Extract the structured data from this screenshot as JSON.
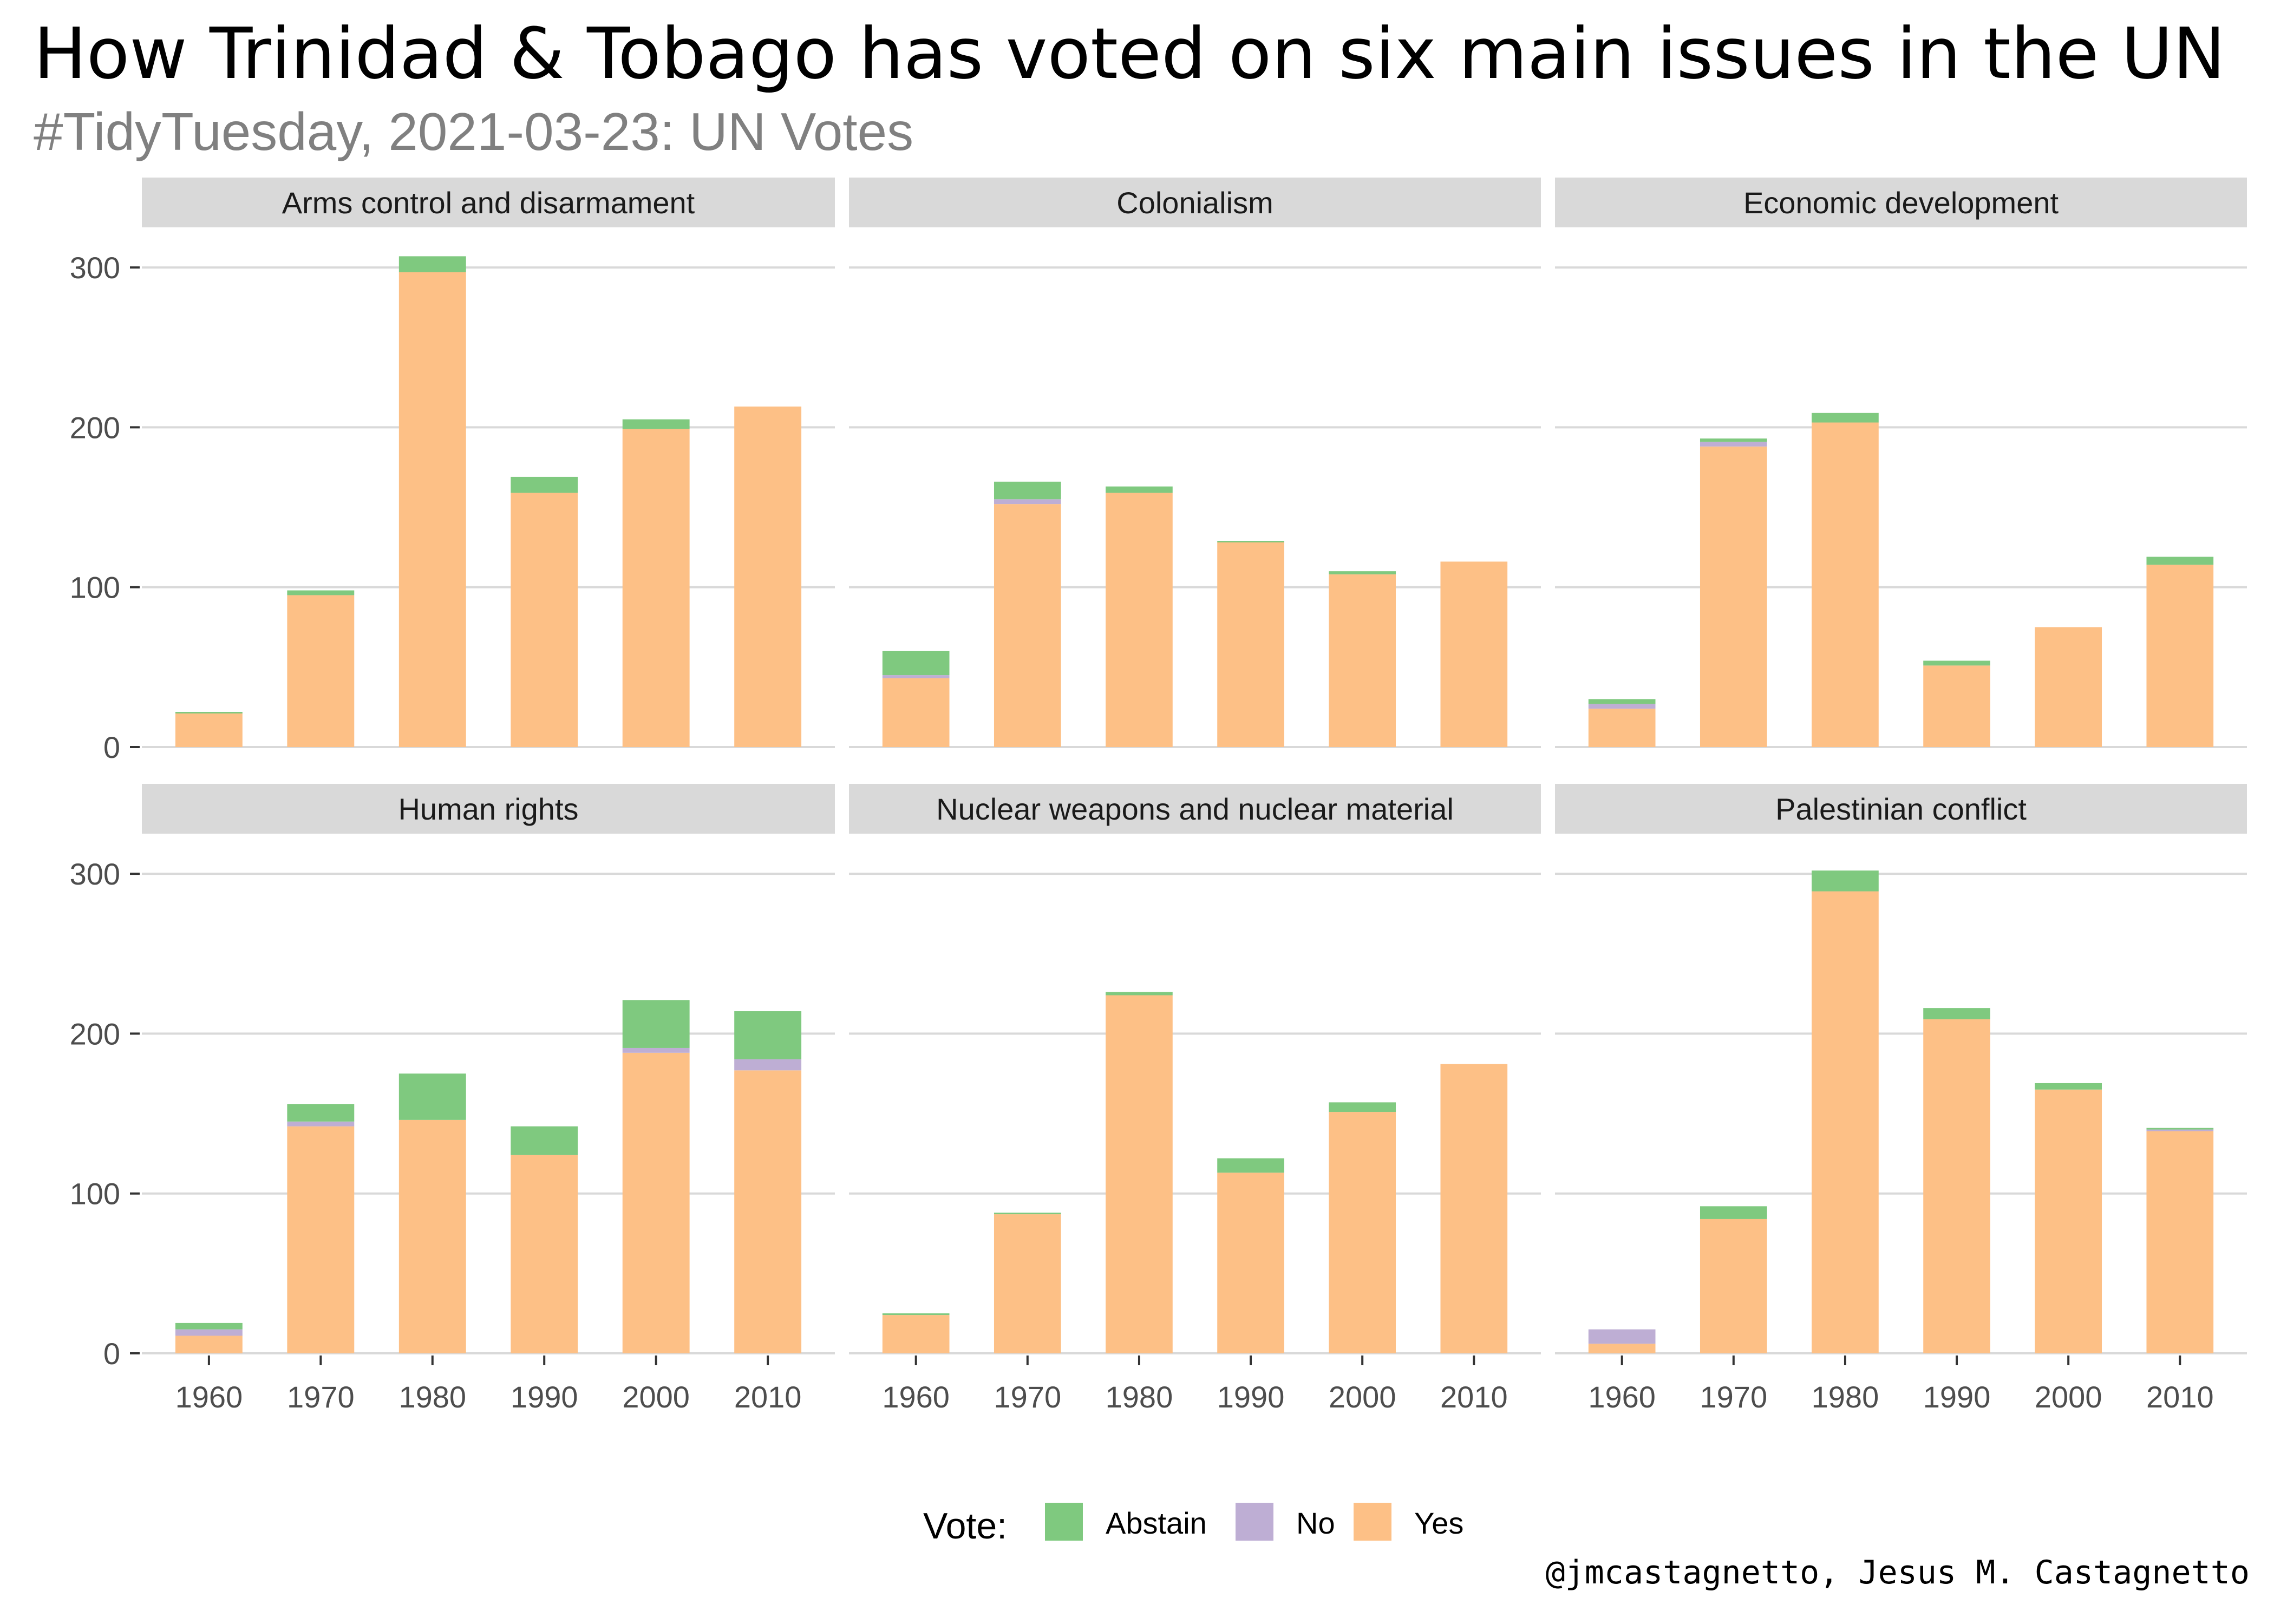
{
  "title": "How Trinidad & Tobago has voted on six main issues in the UN",
  "subtitle": "#TidyTuesday, 2021-03-23: UN Votes",
  "credit": "@jmcastagnetto, Jesus M. Castagnetto",
  "colors": {
    "Abstain": "#7fc97f",
    "No": "#beaed4",
    "Yes": "#fdc086",
    "strip": "#d9d9d9",
    "grid": "#d9d9d9"
  },
  "chart_data": {
    "type": "bar",
    "stacked": true,
    "facets": [
      "Arms control and disarmament",
      "Colonialism",
      "Economic development",
      "Human rights",
      "Nuclear weapons and nuclear material",
      "Palestinian conflict"
    ],
    "categories": [
      "1960",
      "1970",
      "1980",
      "1990",
      "2000",
      "2010"
    ],
    "y_ticks": [
      0,
      100,
      200,
      300
    ],
    "ylim": [
      0,
      320
    ],
    "legend": {
      "title": "Vote:",
      "entries": [
        "Abstain",
        "No",
        "Yes"
      ],
      "position": "bottom"
    },
    "grid": true,
    "panels": [
      {
        "facet": "Arms control and disarmament",
        "series": [
          {
            "name": "Yes",
            "values": [
              21,
              95,
              297,
              159,
              199,
              213
            ]
          },
          {
            "name": "No",
            "values": [
              0,
              0,
              0,
              0,
              0,
              0
            ]
          },
          {
            "name": "Abstain",
            "values": [
              1,
              3,
              10,
              10,
              6,
              0
            ]
          }
        ]
      },
      {
        "facet": "Colonialism",
        "series": [
          {
            "name": "Yes",
            "values": [
              43,
              152,
              159,
              128,
              108,
              116
            ]
          },
          {
            "name": "No",
            "values": [
              2,
              3,
              0,
              0,
              0,
              0
            ]
          },
          {
            "name": "Abstain",
            "values": [
              15,
              11,
              4,
              1,
              2,
              0
            ]
          }
        ]
      },
      {
        "facet": "Economic development",
        "series": [
          {
            "name": "Yes",
            "values": [
              24,
              188,
              203,
              51,
              75,
              114
            ]
          },
          {
            "name": "No",
            "values": [
              3,
              3,
              0,
              0,
              0,
              0
            ]
          },
          {
            "name": "Abstain",
            "values": [
              3,
              2,
              6,
              3,
              0,
              5
            ]
          }
        ]
      },
      {
        "facet": "Human rights",
        "series": [
          {
            "name": "Yes",
            "values": [
              11,
              142,
              146,
              124,
              188,
              177
            ]
          },
          {
            "name": "No",
            "values": [
              4,
              3,
              0,
              0,
              3,
              7
            ]
          },
          {
            "name": "Abstain",
            "values": [
              4,
              11,
              29,
              18,
              30,
              30
            ]
          }
        ]
      },
      {
        "facet": "Nuclear weapons and nuclear material",
        "series": [
          {
            "name": "Yes",
            "values": [
              24,
              87,
              224,
              113,
              151,
              181
            ]
          },
          {
            "name": "No",
            "values": [
              0,
              0,
              0,
              0,
              0,
              0
            ]
          },
          {
            "name": "Abstain",
            "values": [
              1,
              1,
              2,
              9,
              6,
              0
            ]
          }
        ]
      },
      {
        "facet": "Palestinian conflict",
        "series": [
          {
            "name": "Yes",
            "values": [
              6,
              84,
              289,
              209,
              165,
              139
            ]
          },
          {
            "name": "No",
            "values": [
              9,
              0,
              0,
              0,
              0,
              1
            ]
          },
          {
            "name": "Abstain",
            "values": [
              0,
              8,
              13,
              7,
              4,
              1
            ]
          }
        ]
      }
    ]
  }
}
